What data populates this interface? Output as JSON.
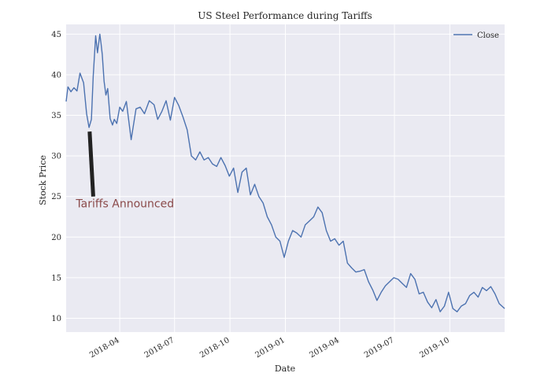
{
  "chart_data": {
    "type": "line",
    "title": "US Steel Performance during Tariffs",
    "xlabel": "Date",
    "ylabel": "Stock Price",
    "xlim": [
      "2018-01-02",
      "2019-12-31"
    ],
    "ylim": [
      8.3,
      46.2
    ],
    "x_ticks": [
      "2018-04",
      "2018-07",
      "2018-10",
      "2019-01",
      "2019-04",
      "2019-07",
      "2019-10"
    ],
    "y_ticks": [
      10,
      15,
      20,
      25,
      30,
      35,
      40,
      45
    ],
    "grid": true,
    "legend": {
      "placement": "top-right",
      "entries": [
        "Close"
      ]
    },
    "colors": {
      "series": "#4c72b0",
      "background": "#eaeaf2",
      "grid": "#ffffff",
      "annotation_text": "#8b4a4a",
      "annotation_line": "#222222"
    },
    "series": [
      {
        "name": "Close",
        "x": [
          "2018-01-02",
          "2018-01-05",
          "2018-01-10",
          "2018-01-15",
          "2018-01-20",
          "2018-01-25",
          "2018-01-31",
          "2018-02-05",
          "2018-02-09",
          "2018-02-13",
          "2018-02-16",
          "2018-02-20",
          "2018-02-23",
          "2018-02-27",
          "2018-03-01",
          "2018-03-03",
          "2018-03-06",
          "2018-03-09",
          "2018-03-12",
          "2018-03-16",
          "2018-03-20",
          "2018-03-23",
          "2018-03-27",
          "2018-04-01",
          "2018-04-06",
          "2018-04-12",
          "2018-04-20",
          "2018-04-28",
          "2018-05-05",
          "2018-05-12",
          "2018-05-20",
          "2018-05-28",
          "2018-06-03",
          "2018-06-10",
          "2018-06-17",
          "2018-06-24",
          "2018-07-01",
          "2018-07-08",
          "2018-07-15",
          "2018-07-22",
          "2018-07-29",
          "2018-08-05",
          "2018-08-12",
          "2018-08-19",
          "2018-08-26",
          "2018-09-02",
          "2018-09-09",
          "2018-09-16",
          "2018-09-23",
          "2018-09-30",
          "2018-10-07",
          "2018-10-14",
          "2018-10-21",
          "2018-10-28",
          "2018-11-04",
          "2018-11-11",
          "2018-11-18",
          "2018-11-25",
          "2018-12-02",
          "2018-12-09",
          "2018-12-16",
          "2018-12-23",
          "2018-12-30",
          "2019-01-06",
          "2019-01-13",
          "2019-01-20",
          "2019-01-27",
          "2019-02-03",
          "2019-02-10",
          "2019-02-17",
          "2019-02-24",
          "2019-03-03",
          "2019-03-10",
          "2019-03-17",
          "2019-03-24",
          "2019-03-31",
          "2019-04-07",
          "2019-04-14",
          "2019-04-21",
          "2019-04-28",
          "2019-05-05",
          "2019-05-12",
          "2019-05-19",
          "2019-05-26",
          "2019-06-02",
          "2019-06-09",
          "2019-06-16",
          "2019-06-23",
          "2019-06-30",
          "2019-07-07",
          "2019-07-14",
          "2019-07-21",
          "2019-07-28",
          "2019-08-04",
          "2019-08-11",
          "2019-08-18",
          "2019-08-25",
          "2019-09-01",
          "2019-09-08",
          "2019-09-15",
          "2019-09-22",
          "2019-09-29",
          "2019-10-06",
          "2019-10-13",
          "2019-10-20",
          "2019-10-27",
          "2019-11-03",
          "2019-11-10",
          "2019-11-17",
          "2019-11-24",
          "2019-12-01",
          "2019-12-08",
          "2019-12-15",
          "2019-12-22",
          "2019-12-31"
        ],
        "y": [
          36.7,
          38.5,
          37.9,
          38.4,
          38.0,
          40.2,
          39.0,
          35.2,
          33.5,
          34.5,
          39.8,
          44.8,
          42.7,
          45.0,
          43.8,
          42.5,
          39.2,
          37.5,
          38.3,
          34.6,
          33.8,
          34.5,
          34.0,
          36.0,
          35.5,
          36.7,
          32.0,
          35.8,
          36.0,
          35.2,
          36.8,
          36.3,
          34.5,
          35.5,
          36.8,
          34.4,
          37.2,
          36.2,
          34.8,
          33.2,
          30.0,
          29.5,
          30.5,
          29.5,
          29.8,
          29.0,
          28.7,
          29.8,
          28.8,
          27.5,
          28.5,
          25.5,
          28.0,
          28.5,
          25.2,
          26.5,
          25.0,
          24.2,
          22.5,
          21.5,
          20.0,
          19.5,
          17.5,
          19.5,
          20.8,
          20.5,
          20.0,
          21.5,
          22.0,
          22.5,
          23.7,
          23.0,
          20.8,
          19.5,
          19.8,
          19.0,
          19.5,
          16.8,
          16.2,
          15.7,
          15.8,
          16.0,
          14.5,
          13.5,
          12.2,
          13.2,
          14.0,
          14.5,
          15.0,
          14.8,
          14.3,
          13.8,
          15.5,
          14.8,
          13.0,
          13.2,
          12.0,
          11.3,
          12.3,
          10.8,
          11.5,
          13.2,
          11.2,
          10.8,
          11.5,
          11.8,
          12.8,
          13.2,
          12.6,
          13.8,
          13.4,
          13.9,
          13.0,
          11.8,
          11.2
        ]
      }
    ],
    "annotations": [
      {
        "text": "Tariffs Announced",
        "point_to": [
          "2018-02-10",
          33.0
        ],
        "from": [
          "2018-02-16",
          25.0
        ]
      }
    ]
  }
}
